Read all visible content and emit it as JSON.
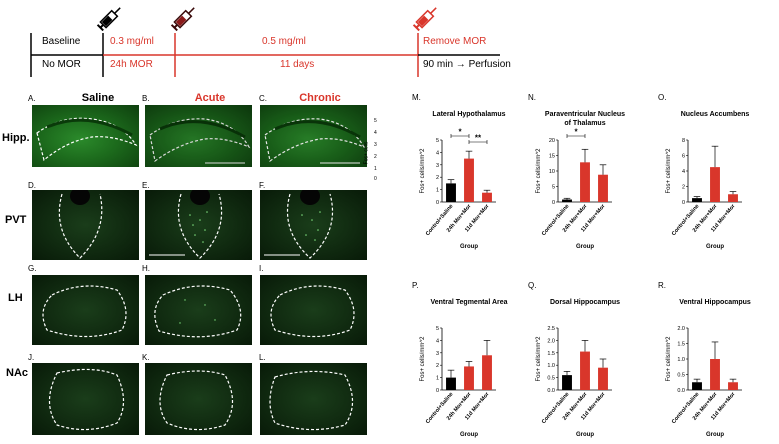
{
  "timeline": {
    "baseline": "Baseline",
    "no_mor": "No MOR",
    "dose1": "0.3 mg/ml",
    "dose1_time": "24h MOR",
    "dose2": "0.5 mg/ml",
    "dose2_time": "11 days",
    "remove": "Remove MOR",
    "perfusion": "90 min → Perfusion",
    "colors": {
      "red": "#d9362b",
      "black": "#000000"
    }
  },
  "micrographs": {
    "col_heads": [
      "Saline",
      "Acute",
      "Chronic"
    ],
    "row_heads": [
      "Hipp.",
      "PVT",
      "LH",
      "NAc"
    ],
    "letters": [
      "A.",
      "B.",
      "C.",
      "D.",
      "E.",
      "F.",
      "G.",
      "H.",
      "I.",
      "J.",
      "K.",
      "L."
    ],
    "scale_ticks": [
      "5",
      "4",
      "3",
      "2",
      "1",
      "0"
    ],
    "scale_label": "Fos+ cells",
    "icons": [
      "syringe-icon"
    ]
  },
  "chart_data": [
    {
      "letter": "M.",
      "type": "bar",
      "title": "Lateral Hypothalamus",
      "categories": [
        "Control+Saline",
        "24h Mor+Mor",
        "11d Mor+Mor"
      ],
      "values": [
        1.5,
        3.5,
        0.75
      ],
      "errors": [
        0.3,
        0.6,
        0.2
      ],
      "colors": [
        "#000000",
        "#d9362b",
        "#d9362b"
      ],
      "ylabel": "Fos+ cells/mm^2",
      "xlabel": "Group",
      "yticks": [
        0,
        1,
        2,
        3,
        4,
        5
      ],
      "ylim": [
        0,
        5
      ],
      "sig": [
        {
          "from": 0,
          "to": 1,
          "label": "*"
        },
        {
          "from": 1,
          "to": 2,
          "label": "**"
        }
      ]
    },
    {
      "letter": "N.",
      "type": "bar",
      "title": "Paraventricular Nucleus\nof Thalamus",
      "categories": [
        "Control+Saline",
        "24h Mor+Mor",
        "11d Mor+Mor"
      ],
      "values": [
        0.8,
        12.8,
        8.8
      ],
      "errors": [
        0.4,
        4.2,
        3.2
      ],
      "colors": [
        "#000000",
        "#d9362b",
        "#d9362b"
      ],
      "ylabel": "Fos+ cells/mm^2",
      "xlabel": "Group",
      "yticks": [
        0,
        5,
        10,
        15,
        20
      ],
      "ylim": [
        0,
        20
      ],
      "sig": [
        {
          "from": 0,
          "to": 1,
          "label": "*"
        }
      ]
    },
    {
      "letter": "O.",
      "type": "bar",
      "title": "Nucleus Accumbens",
      "categories": [
        "Control+Saline",
        "24h Mor+Mor",
        "11d Mor+Mor"
      ],
      "values": [
        0.5,
        4.5,
        1.0
      ],
      "errors": [
        0.2,
        2.7,
        0.35
      ],
      "colors": [
        "#000000",
        "#d9362b",
        "#d9362b"
      ],
      "ylabel": "Fos+ cells/mm^2",
      "xlabel": "Group",
      "yticks": [
        0,
        2,
        4,
        6,
        8
      ],
      "ylim": [
        0,
        8
      ],
      "sig": []
    },
    {
      "letter": "P.",
      "type": "bar",
      "title": "Ventral Tegmental Area",
      "categories": [
        "Control+Saline",
        "24h Mor+Mor",
        "11d Mor+Mor"
      ],
      "values": [
        1.0,
        1.9,
        2.8
      ],
      "errors": [
        0.6,
        0.4,
        1.2
      ],
      "colors": [
        "#000000",
        "#d9362b",
        "#d9362b"
      ],
      "ylabel": "Fos+ cells/mm^2",
      "xlabel": "Group",
      "yticks": [
        0,
        1,
        2,
        3,
        4,
        5
      ],
      "ylim": [
        0,
        5
      ],
      "sig": []
    },
    {
      "letter": "Q.",
      "type": "bar",
      "title": "Dorsal Hippocampus",
      "categories": [
        "Control+Saline",
        "24h Mor+Mor",
        "11d Mor+Mor"
      ],
      "values": [
        0.6,
        1.55,
        0.9
      ],
      "errors": [
        0.15,
        0.45,
        0.35
      ],
      "colors": [
        "#000000",
        "#d9362b",
        "#d9362b"
      ],
      "ylabel": "Fos+ cells/mm^2",
      "xlabel": "Group",
      "yticks": [
        0.0,
        0.5,
        1.0,
        1.5,
        2.0,
        2.5
      ],
      "ylim": [
        0,
        2.5
      ],
      "sig": []
    },
    {
      "letter": "R.",
      "type": "bar",
      "title": "Ventral Hippocampus",
      "categories": [
        "Control+Saline",
        "24h Mor+Mor",
        "11d Mor+Mor"
      ],
      "values": [
        0.25,
        1.0,
        0.25
      ],
      "errors": [
        0.1,
        0.55,
        0.1
      ],
      "colors": [
        "#000000",
        "#d9362b",
        "#d9362b"
      ],
      "ylabel": "Fos+ cells/mm^2",
      "xlabel": "Group",
      "yticks": [
        0.0,
        0.5,
        1.0,
        1.5,
        2.0
      ],
      "ylim": [
        0,
        2.0
      ],
      "sig": []
    }
  ]
}
